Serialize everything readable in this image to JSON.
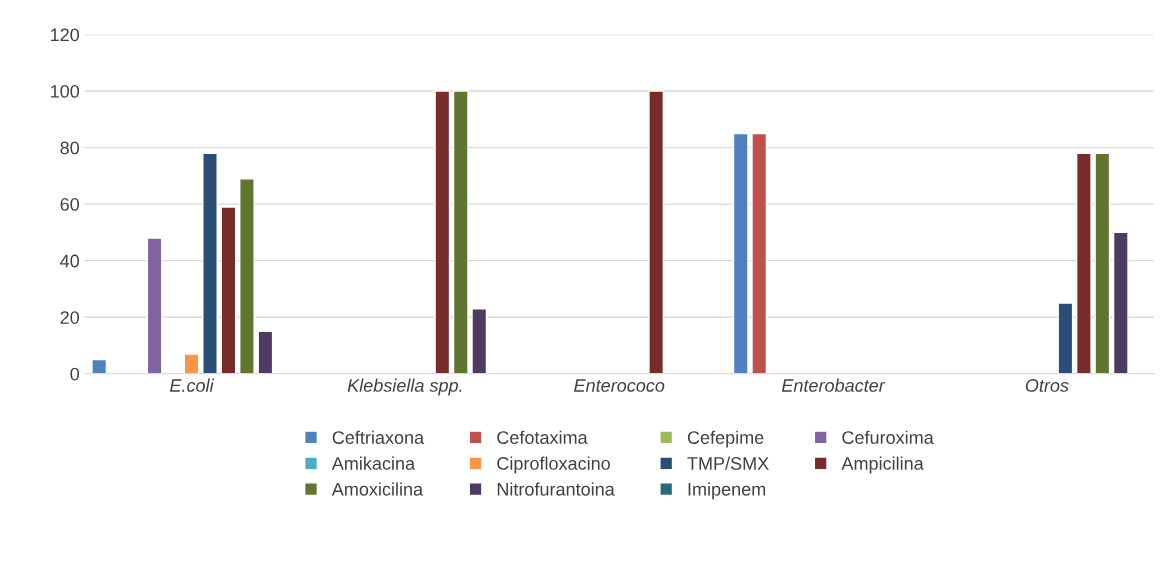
{
  "chart_data": {
    "type": "bar",
    "categories": [
      "E.coli",
      "Klebsiella spp.",
      "Enterococo",
      "Enterobacter",
      "Otros"
    ],
    "series": [
      {
        "name": "Ceftriaxona",
        "color": "#4f81bd",
        "values": [
          5,
          null,
          null,
          85,
          null
        ]
      },
      {
        "name": "Cefotaxima",
        "color": "#c0504d",
        "values": [
          null,
          null,
          null,
          85,
          null
        ]
      },
      {
        "name": "Cefepime",
        "color": "#9bbb59",
        "values": [
          null,
          null,
          null,
          null,
          null
        ]
      },
      {
        "name": "Cefuroxima",
        "color": "#8064a2",
        "values": [
          48,
          null,
          null,
          null,
          null
        ]
      },
      {
        "name": "Amikacina",
        "color": "#4bacc6",
        "values": [
          null,
          null,
          null,
          null,
          null
        ]
      },
      {
        "name": "Ciprofloxacino",
        "color": "#f79646",
        "values": [
          7,
          null,
          null,
          null,
          null
        ]
      },
      {
        "name": "TMP/SMX",
        "color": "#2c4d75",
        "values": [
          78,
          null,
          null,
          null,
          25
        ]
      },
      {
        "name": "Ampicilina",
        "color": "#772c2a",
        "values": [
          59,
          100,
          100,
          null,
          78
        ]
      },
      {
        "name": "Amoxicilina",
        "color": "#5f7530",
        "values": [
          69,
          100,
          null,
          null,
          78
        ]
      },
      {
        "name": "Nitrofurantoina",
        "color": "#4d3b62",
        "values": [
          15,
          23,
          null,
          null,
          50
        ]
      },
      {
        "name": "Imipenem",
        "color": "#276a7c",
        "values": [
          null,
          null,
          null,
          null,
          null
        ]
      }
    ],
    "ylim": [
      0,
      120
    ],
    "yticks": [
      0,
      20,
      40,
      60,
      80,
      100,
      120
    ],
    "grid": "y",
    "legend": "bottom"
  }
}
